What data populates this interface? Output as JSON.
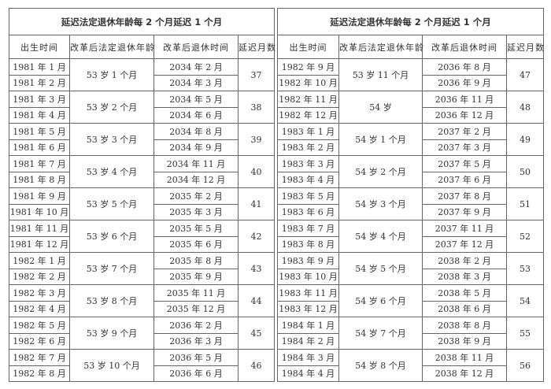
{
  "tables": [
    {
      "title": "延迟法定退休年龄每 2 个月延迟 1 个月",
      "headers": [
        "出生时间",
        "改革后法定退休年龄",
        "改革后退休时间",
        "延迟月数"
      ],
      "groups": [
        {
          "birth": [
            "1981 年 1 月",
            "1981 年 2 月"
          ],
          "age": "53 岁 1 个月",
          "retire": [
            "2034 年 2 月",
            "2034 年 3 月"
          ],
          "months": "37"
        },
        {
          "birth": [
            "1981 年 3 月",
            "1981 年 4 月"
          ],
          "age": "53 岁 2 个月",
          "retire": [
            "2034 年 5 月",
            "2034 年 6 月"
          ],
          "months": "38"
        },
        {
          "birth": [
            "1981 年 5 月",
            "1981 年 6 月"
          ],
          "age": "53 岁 3 个月",
          "retire": [
            "2034 年 8 月",
            "2034 年 9 月"
          ],
          "months": "39"
        },
        {
          "birth": [
            "1981 年 7 月",
            "1981 年 8 月"
          ],
          "age": "53 岁 4 个月",
          "retire": [
            "2034 年 11 月",
            "2034 年 12 月"
          ],
          "months": "40"
        },
        {
          "birth": [
            "1981 年 9 月",
            "1981 年 10 月"
          ],
          "age": "53 岁 5 个月",
          "retire": [
            "2035 年 2 月",
            "2035 年 3 月"
          ],
          "months": "41"
        },
        {
          "birth": [
            "1981 年 11 月",
            "1981 年 12 月"
          ],
          "age": "53 岁 6 个月",
          "retire": [
            "2035 年 5 月",
            "2035 年 6 月"
          ],
          "months": "42"
        },
        {
          "birth": [
            "1982 年 1 月",
            "1982 年 2 月"
          ],
          "age": "53 岁 7 个月",
          "retire": [
            "2035 年 8 月",
            "2035 年 9 月"
          ],
          "months": "43"
        },
        {
          "birth": [
            "1982 年 3 月",
            "1982 年 4 月"
          ],
          "age": "53 岁 8 个月",
          "retire": [
            "2035 年 11 月",
            "2035 年 12 月"
          ],
          "months": "44"
        },
        {
          "birth": [
            "1982 年 5 月",
            "1982 年 6 月"
          ],
          "age": "53 岁 9 个月",
          "retire": [
            "2036 年 2 月",
            "2036 年 3 月"
          ],
          "months": "45"
        },
        {
          "birth": [
            "1982 年 7 月",
            "1982 年 8 月"
          ],
          "age": "53 岁 10 个月",
          "retire": [
            "2036 年 5 月",
            "2036 年 6 月"
          ],
          "months": "46"
        }
      ]
    },
    {
      "title": "延迟法定退休年龄每 2 个月延迟 1 个月",
      "headers": [
        "出生时间",
        "改革后法定退休年龄",
        "改革后退休时间",
        "延迟月数"
      ],
      "groups": [
        {
          "birth": [
            "1982 年 9 月",
            "1982 年 10 月"
          ],
          "age": "53 岁 11 个月",
          "retire": [
            "2036 年 8 月",
            "2036 年 9 月"
          ],
          "months": "47"
        },
        {
          "birth": [
            "1982 年 11 月",
            "1982 年 12 月"
          ],
          "age": "54 岁",
          "retire": [
            "2036 年 11 月",
            "2036 年 12 月"
          ],
          "months": "48"
        },
        {
          "birth": [
            "1983 年 1 月",
            "1983 年 2 月"
          ],
          "age": "54 岁 1 个月",
          "retire": [
            "2037 年 2 月",
            "2037 年 3 月"
          ],
          "months": "49"
        },
        {
          "birth": [
            "1983 年 3 月",
            "1983 年 4 月"
          ],
          "age": "54 岁 2 个月",
          "retire": [
            "2037 年 5 月",
            "2037 年 6 月"
          ],
          "months": "50"
        },
        {
          "birth": [
            "1983 年 5 月",
            "1983 年 6 月"
          ],
          "age": "54 岁 3 个月",
          "retire": [
            "2037 年 8 月",
            "2037 年 9 月"
          ],
          "months": "51"
        },
        {
          "birth": [
            "1983 年 7 月",
            "1983 年 8 月"
          ],
          "age": "54 岁 4 个月",
          "retire": [
            "2037 年 11 月",
            "2037 年 12 月"
          ],
          "months": "52"
        },
        {
          "birth": [
            "1983 年 9 月",
            "1983 年 10 月"
          ],
          "age": "54 岁 5 个月",
          "retire": [
            "2038 年 2 月",
            "2038 年 3 月"
          ],
          "months": "53"
        },
        {
          "birth": [
            "1983 年 11 月",
            "1983 年 12 月"
          ],
          "age": "54 岁 6 个月",
          "retire": [
            "2038 年 5 月",
            "2038 年 6 月"
          ],
          "months": "54"
        },
        {
          "birth": [
            "1984 年 1 月",
            "1984 年 2 月"
          ],
          "age": "54 岁 7 个月",
          "retire": [
            "2038 年 8 月",
            "2038 年 9 月"
          ],
          "months": "55"
        },
        {
          "birth": [
            "1984 年 3 月",
            "1984 年 4 月"
          ],
          "age": "54 岁 8 个月",
          "retire": [
            "2038 年 11 月",
            "2038 年 12 月"
          ],
          "months": "56"
        }
      ]
    }
  ]
}
